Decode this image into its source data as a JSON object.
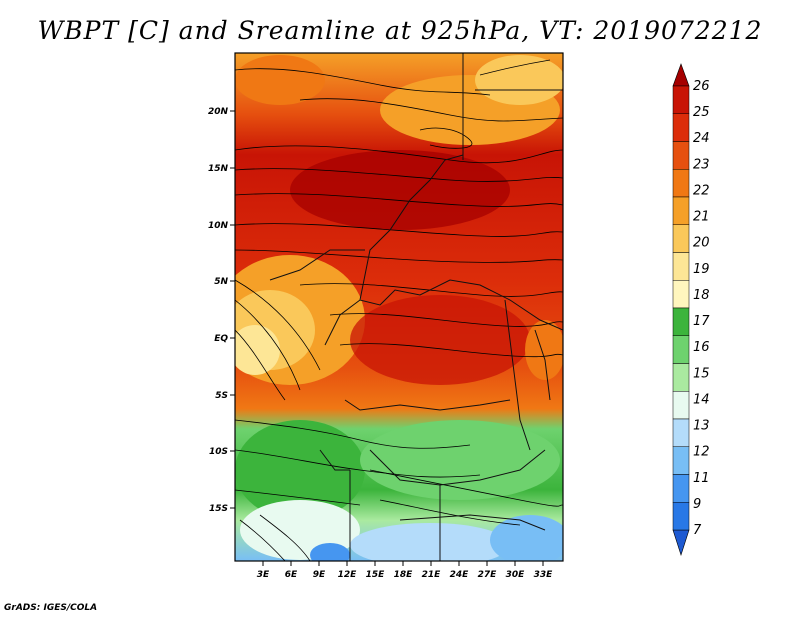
{
  "title": "WBPT [C] and Sreamline at 925hPa, VT: 2019072212",
  "footer": "GrADS: IGES/COLA",
  "map": {
    "lat_labels": [
      "20N",
      "15N",
      "10N",
      "5N",
      "EQ",
      "5S",
      "10S",
      "15S"
    ],
    "lon_labels": [
      "3E",
      "6E",
      "9E",
      "12E",
      "15E",
      "18E",
      "21E",
      "24E",
      "27E",
      "30E",
      "33E"
    ]
  },
  "colorbar": {
    "levels": [
      "26",
      "25",
      "24",
      "23",
      "22",
      "21",
      "20",
      "19",
      "18",
      "17",
      "16",
      "15",
      "14",
      "13",
      "12",
      "11",
      "9",
      "7"
    ],
    "colors": [
      "#a50000",
      "#c81405",
      "#dc2d0a",
      "#e6500f",
      "#f07814",
      "#f5a028",
      "#fac85a",
      "#fde696",
      "#fff6be",
      "#3cb43c",
      "#6ed26e",
      "#aaeaa0",
      "#e8faf0",
      "#b4dcfa",
      "#78bef5",
      "#4696f0",
      "#2878e6",
      "#1e5ad2"
    ]
  }
}
